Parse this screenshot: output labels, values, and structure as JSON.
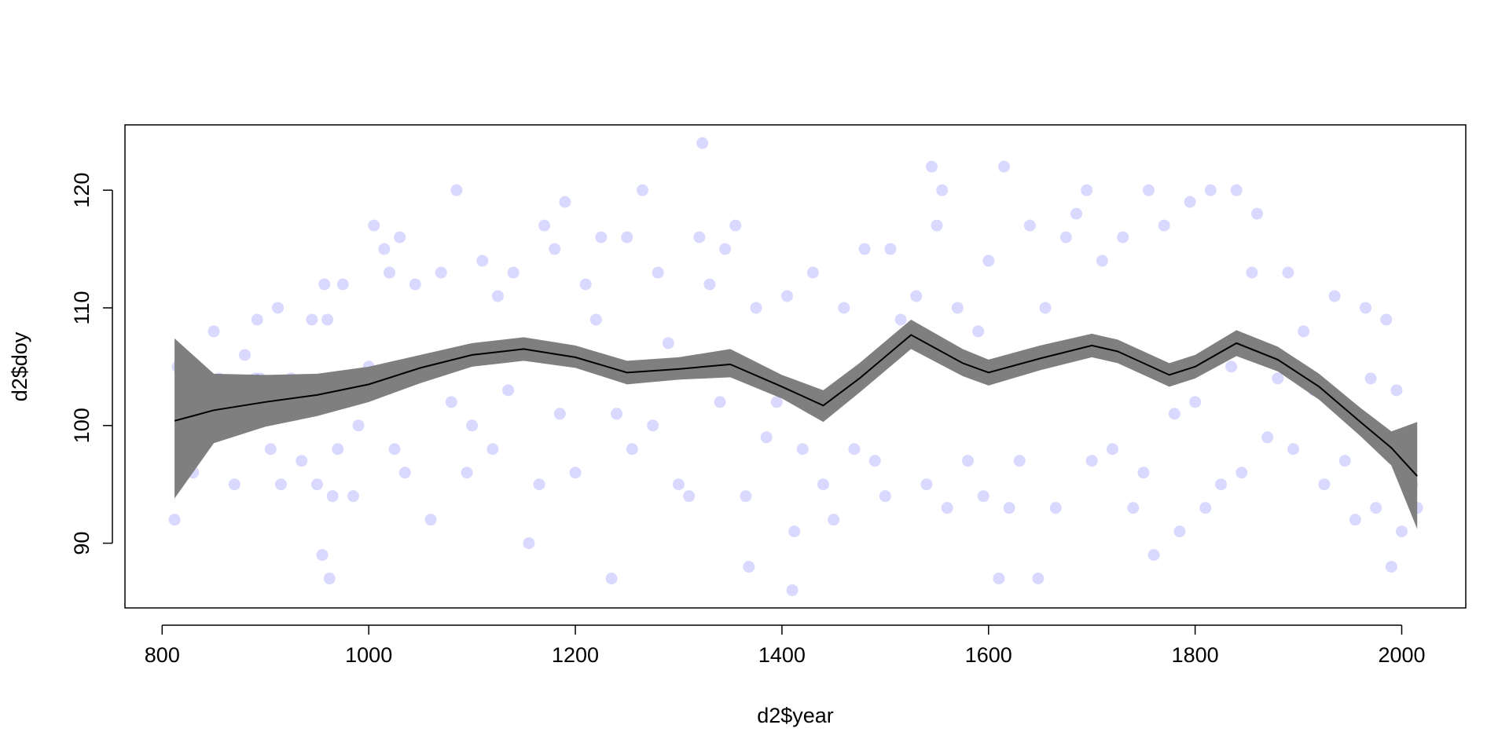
{
  "chart_data": {
    "type": "scatter",
    "xlabel": "d2$year",
    "ylabel": "d2$doy",
    "xlim": [
      764,
      2062
    ],
    "ylim": [
      84.5,
      125.55
    ],
    "xticks": [
      800,
      1000,
      1200,
      1400,
      1600,
      1800,
      2000
    ],
    "yticks": [
      90,
      100,
      110,
      120
    ],
    "point_color": "rgba(80,80,255,0.22)",
    "x": [
      812,
      815,
      830,
      850,
      855,
      865,
      870,
      880,
      890,
      892,
      895,
      905,
      912,
      915,
      925,
      935,
      945,
      950,
      955,
      957,
      960,
      962,
      965,
      970,
      975,
      980,
      985,
      990,
      1000,
      1005,
      1015,
      1020,
      1025,
      1030,
      1035,
      1045,
      1050,
      1060,
      1070,
      1080,
      1085,
      1095,
      1100,
      1110,
      1120,
      1125,
      1135,
      1140,
      1155,
      1165,
      1170,
      1180,
      1185,
      1190,
      1200,
      1210,
      1220,
      1225,
      1235,
      1240,
      1250,
      1255,
      1265,
      1275,
      1280,
      1290,
      1300,
      1310,
      1320,
      1323,
      1330,
      1340,
      1345,
      1355,
      1365,
      1368,
      1375,
      1385,
      1395,
      1405,
      1410,
      1412,
      1420,
      1430,
      1440,
      1450,
      1460,
      1470,
      1480,
      1490,
      1500,
      1505,
      1515,
      1530,
      1540,
      1545,
      1550,
      1555,
      1560,
      1570,
      1580,
      1590,
      1595,
      1600,
      1610,
      1615,
      1620,
      1630,
      1640,
      1648,
      1655,
      1665,
      1675,
      1685,
      1695,
      1700,
      1710,
      1720,
      1730,
      1740,
      1750,
      1755,
      1760,
      1770,
      1780,
      1785,
      1795,
      1800,
      1810,
      1815,
      1825,
      1835,
      1840,
      1845,
      1855,
      1860,
      1870,
      1880,
      1890,
      1895,
      1905,
      1915,
      1925,
      1935,
      1945,
      1955,
      1965,
      1970,
      1975,
      1985,
      1990,
      1995,
      2000,
      2005,
      2010,
      2015
    ],
    "values": [
      92,
      105,
      96,
      108,
      104,
      100,
      95,
      106,
      104,
      109,
      104,
      98,
      110,
      95,
      104,
      97,
      109,
      95,
      89,
      112,
      109,
      87,
      94,
      98,
      112,
      104,
      94,
      100,
      105,
      117,
      115,
      113,
      98,
      116,
      96,
      112,
      105,
      92,
      113,
      102,
      120,
      96,
      100,
      114,
      98,
      111,
      103,
      113,
      90,
      95,
      117,
      115,
      101,
      119,
      96,
      112,
      109,
      116,
      87,
      101,
      116,
      98,
      120,
      100,
      113,
      107,
      95,
      94,
      116,
      124,
      112,
      102,
      115,
      117,
      94,
      88,
      110,
      99,
      102,
      111,
      86,
      91,
      98,
      113,
      95,
      92,
      110,
      98,
      115,
      97,
      94,
      115,
      109,
      111,
      95,
      122,
      117,
      120,
      93,
      110,
      97,
      108,
      94,
      114,
      87,
      122,
      93,
      97,
      117,
      87,
      110,
      93,
      116,
      118,
      120,
      97,
      114,
      98,
      116,
      93,
      96,
      120,
      89,
      117,
      101,
      91,
      119,
      102,
      93,
      120,
      95,
      105,
      120,
      96,
      113,
      118,
      99,
      104,
      113,
      98,
      108,
      103,
      95,
      111,
      97,
      92,
      110,
      104,
      93,
      109,
      88,
      103,
      91,
      97,
      95,
      93
    ],
    "fit": {
      "color": "#000000",
      "band_color": "#7f7f7f",
      "x": [
        812,
        850,
        900,
        950,
        1000,
        1050,
        1100,
        1150,
        1200,
        1250,
        1300,
        1350,
        1400,
        1440,
        1475,
        1525,
        1575,
        1600,
        1650,
        1700,
        1725,
        1775,
        1800,
        1840,
        1880,
        1920,
        1960,
        1990,
        2015
      ],
      "values": [
        100.4,
        101.3,
        102.0,
        102.6,
        103.5,
        104.9,
        106.0,
        106.5,
        105.8,
        104.5,
        104.8,
        105.2,
        103.3,
        101.7,
        104.0,
        107.7,
        105.3,
        104.5,
        105.7,
        106.8,
        106.3,
        104.3,
        105.0,
        107.0,
        105.6,
        103.3,
        100.3,
        98.1,
        95.7
      ],
      "lower": [
        93.8,
        98.5,
        99.9,
        100.8,
        102.0,
        103.6,
        105.0,
        105.5,
        104.9,
        103.5,
        103.9,
        104.1,
        102.3,
        100.3,
        102.8,
        106.5,
        104.2,
        103.4,
        104.7,
        105.8,
        105.3,
        103.3,
        104.0,
        105.9,
        104.6,
        102.2,
        99.1,
        96.6,
        91.2
      ],
      "upper": [
        107.4,
        104.4,
        104.3,
        104.4,
        105.0,
        106.0,
        107.0,
        107.5,
        106.8,
        105.5,
        105.8,
        106.5,
        104.3,
        103.0,
        105.3,
        109.0,
        106.5,
        105.6,
        106.8,
        107.8,
        107.3,
        105.3,
        106.0,
        108.1,
        106.7,
        104.4,
        101.5,
        99.5,
        100.3
      ]
    }
  }
}
